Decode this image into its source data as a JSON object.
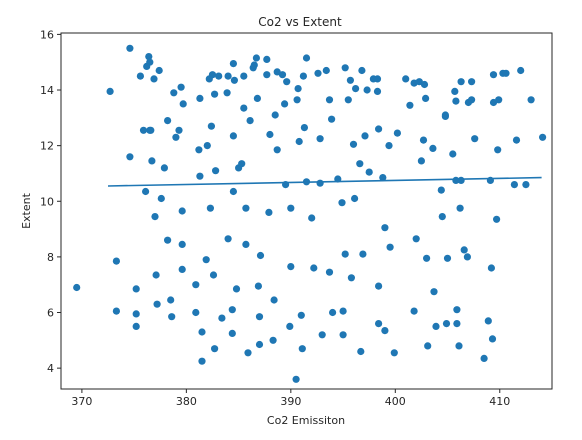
{
  "chart_data": {
    "type": "scatter",
    "title": "Co2 vs Extent",
    "xlabel": "Co2 Emissiton",
    "ylabel": "Extent",
    "xlim": [
      368.0,
      415.0
    ],
    "ylim": [
      3.25,
      16.05
    ],
    "xticks": [
      370,
      380,
      390,
      400,
      410
    ],
    "yticks": [
      4,
      6,
      8,
      10,
      12,
      14,
      16
    ],
    "grid": false,
    "marker_color": "#1f77b4",
    "line_color": "#1f77b4",
    "trend_line": {
      "x": [
        372.5,
        414.0
      ],
      "y": [
        10.55,
        10.85
      ]
    },
    "points": [
      [
        369.5,
        6.9
      ],
      [
        372.7,
        13.95
      ],
      [
        373.3,
        7.85
      ],
      [
        373.3,
        6.05
      ],
      [
        374.6,
        15.5
      ],
      [
        374.6,
        11.6
      ],
      [
        375.2,
        6.85
      ],
      [
        375.2,
        5.95
      ],
      [
        375.2,
        5.5
      ],
      [
        375.6,
        14.5
      ],
      [
        375.9,
        12.55
      ],
      [
        376.1,
        10.35
      ],
      [
        376.2,
        14.85
      ],
      [
        376.4,
        15.2
      ],
      [
        376.5,
        15.0
      ],
      [
        376.5,
        12.55
      ],
      [
        376.6,
        12.55
      ],
      [
        376.7,
        11.45
      ],
      [
        376.9,
        14.4
      ],
      [
        377.0,
        9.45
      ],
      [
        377.1,
        7.35
      ],
      [
        377.2,
        6.3
      ],
      [
        377.4,
        14.7
      ],
      [
        377.6,
        10.1
      ],
      [
        377.9,
        11.2
      ],
      [
        378.2,
        12.9
      ],
      [
        378.2,
        8.6
      ],
      [
        378.5,
        6.45
      ],
      [
        378.6,
        5.85
      ],
      [
        378.8,
        13.9
      ],
      [
        379.0,
        12.3
      ],
      [
        379.3,
        12.55
      ],
      [
        379.5,
        14.1
      ],
      [
        379.6,
        9.65
      ],
      [
        379.6,
        8.45
      ],
      [
        379.6,
        7.55
      ],
      [
        379.7,
        13.5
      ],
      [
        380.9,
        7.0
      ],
      [
        380.9,
        6.0
      ],
      [
        381.2,
        11.85
      ],
      [
        381.3,
        13.7
      ],
      [
        381.3,
        10.9
      ],
      [
        381.5,
        5.3
      ],
      [
        381.5,
        4.25
      ],
      [
        381.9,
        7.9
      ],
      [
        382.0,
        12.0
      ],
      [
        382.2,
        14.4
      ],
      [
        382.3,
        9.75
      ],
      [
        382.4,
        12.7
      ],
      [
        382.5,
        14.55
      ],
      [
        382.6,
        7.35
      ],
      [
        382.7,
        13.85
      ],
      [
        382.7,
        4.7
      ],
      [
        382.8,
        11.1
      ],
      [
        383.1,
        14.5
      ],
      [
        383.4,
        5.8
      ],
      [
        383.9,
        13.9
      ],
      [
        384.0,
        14.5
      ],
      [
        384.0,
        8.65
      ],
      [
        384.4,
        6.1
      ],
      [
        384.4,
        5.25
      ],
      [
        384.5,
        14.95
      ],
      [
        384.5,
        10.35
      ],
      [
        384.5,
        12.35
      ],
      [
        384.6,
        14.35
      ],
      [
        384.8,
        6.85
      ],
      [
        385.0,
        11.2
      ],
      [
        385.3,
        11.35
      ],
      [
        385.5,
        14.5
      ],
      [
        385.5,
        13.35
      ],
      [
        385.7,
        9.75
      ],
      [
        385.7,
        8.45
      ],
      [
        385.9,
        4.55
      ],
      [
        386.1,
        12.9
      ],
      [
        386.4,
        14.8
      ],
      [
        386.5,
        14.9
      ],
      [
        386.7,
        15.15
      ],
      [
        386.8,
        13.7
      ],
      [
        386.9,
        6.95
      ],
      [
        387.0,
        5.85
      ],
      [
        387.0,
        4.85
      ],
      [
        387.1,
        8.05
      ],
      [
        387.7,
        14.55
      ],
      [
        387.7,
        15.1
      ],
      [
        387.9,
        9.6
      ],
      [
        388.0,
        12.4
      ],
      [
        388.3,
        5.0
      ],
      [
        388.4,
        6.45
      ],
      [
        388.5,
        13.1
      ],
      [
        388.7,
        14.65
      ],
      [
        388.7,
        11.85
      ],
      [
        389.2,
        14.55
      ],
      [
        389.4,
        13.5
      ],
      [
        389.5,
        10.6
      ],
      [
        389.6,
        14.3
      ],
      [
        389.9,
        5.5
      ],
      [
        390.0,
        9.75
      ],
      [
        390.0,
        7.65
      ],
      [
        390.5,
        3.6
      ],
      [
        390.6,
        13.65
      ],
      [
        390.7,
        14.05
      ],
      [
        390.8,
        12.15
      ],
      [
        391.0,
        5.9
      ],
      [
        391.1,
        4.7
      ],
      [
        391.2,
        14.5
      ],
      [
        391.3,
        12.65
      ],
      [
        391.5,
        10.7
      ],
      [
        391.5,
        15.15
      ],
      [
        392.0,
        9.4
      ],
      [
        392.2,
        7.6
      ],
      [
        392.6,
        14.6
      ],
      [
        392.8,
        12.25
      ],
      [
        392.8,
        10.65
      ],
      [
        393.0,
        5.2
      ],
      [
        393.4,
        14.7
      ],
      [
        393.7,
        13.65
      ],
      [
        393.7,
        7.45
      ],
      [
        393.9,
        12.95
      ],
      [
        394.0,
        6.0
      ],
      [
        394.5,
        10.8
      ],
      [
        394.9,
        9.95
      ],
      [
        395.0,
        6.05
      ],
      [
        395.0,
        5.2
      ],
      [
        395.2,
        14.8
      ],
      [
        395.2,
        8.1
      ],
      [
        395.5,
        13.65
      ],
      [
        395.7,
        14.35
      ],
      [
        395.8,
        7.25
      ],
      [
        396.0,
        12.05
      ],
      [
        396.1,
        10.1
      ],
      [
        396.2,
        14.05
      ],
      [
        396.6,
        11.35
      ],
      [
        396.7,
        4.6
      ],
      [
        396.8,
        14.7
      ],
      [
        396.9,
        8.1
      ],
      [
        397.1,
        12.35
      ],
      [
        397.3,
        14.0
      ],
      [
        397.5,
        11.05
      ],
      [
        397.9,
        14.4
      ],
      [
        398.3,
        14.4
      ],
      [
        398.3,
        13.95
      ],
      [
        398.4,
        12.6
      ],
      [
        398.4,
        6.95
      ],
      [
        398.4,
        5.6
      ],
      [
        398.8,
        10.85
      ],
      [
        399.0,
        9.05
      ],
      [
        399.0,
        5.35
      ],
      [
        399.4,
        12.0
      ],
      [
        399.5,
        8.35
      ],
      [
        399.9,
        4.55
      ],
      [
        400.2,
        12.45
      ],
      [
        401.0,
        14.4
      ],
      [
        401.4,
        13.45
      ],
      [
        401.8,
        6.05
      ],
      [
        401.8,
        14.25
      ],
      [
        402.0,
        8.65
      ],
      [
        402.3,
        14.3
      ],
      [
        402.5,
        11.45
      ],
      [
        402.7,
        12.2
      ],
      [
        402.8,
        14.2
      ],
      [
        402.9,
        13.7
      ],
      [
        403.0,
        7.95
      ],
      [
        403.1,
        4.8
      ],
      [
        403.6,
        11.9
      ],
      [
        403.7,
        6.75
      ],
      [
        403.9,
        5.5
      ],
      [
        404.4,
        10.4
      ],
      [
        404.5,
        9.45
      ],
      [
        404.8,
        13.1
      ],
      [
        404.8,
        13.05
      ],
      [
        404.9,
        5.6
      ],
      [
        405.0,
        7.95
      ],
      [
        405.5,
        11.7
      ],
      [
        405.7,
        13.95
      ],
      [
        405.8,
        13.6
      ],
      [
        405.8,
        10.75
      ],
      [
        405.9,
        6.1
      ],
      [
        405.9,
        5.6
      ],
      [
        406.1,
        4.8
      ],
      [
        406.2,
        9.75
      ],
      [
        406.3,
        14.3
      ],
      [
        406.3,
        10.75
      ],
      [
        406.6,
        8.25
      ],
      [
        406.9,
        8.0
      ],
      [
        407.0,
        13.55
      ],
      [
        407.3,
        14.3
      ],
      [
        407.3,
        13.65
      ],
      [
        407.6,
        12.25
      ],
      [
        408.5,
        4.35
      ],
      [
        408.9,
        5.7
      ],
      [
        409.1,
        10.75
      ],
      [
        409.2,
        7.6
      ],
      [
        409.3,
        5.05
      ],
      [
        409.4,
        14.55
      ],
      [
        409.4,
        13.55
      ],
      [
        409.7,
        9.35
      ],
      [
        409.8,
        11.85
      ],
      [
        409.9,
        13.65
      ],
      [
        410.3,
        14.6
      ],
      [
        410.6,
        14.6
      ],
      [
        411.4,
        10.6
      ],
      [
        411.6,
        12.2
      ],
      [
        412.0,
        14.7
      ],
      [
        412.5,
        10.6
      ],
      [
        413.0,
        13.65
      ],
      [
        414.1,
        12.3
      ]
    ]
  }
}
